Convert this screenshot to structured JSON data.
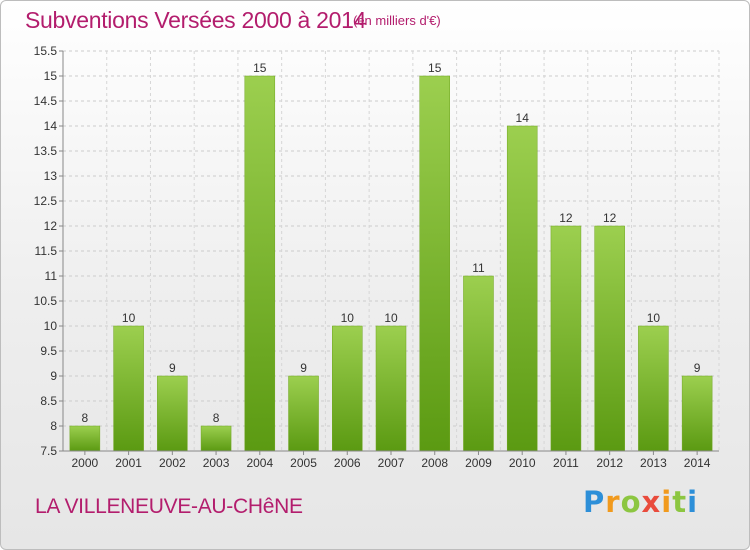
{
  "header": {
    "title": "Subventions Versées 2000 à 2014",
    "subtitle": "(en milliers d'€)"
  },
  "footer": {
    "place": "LA VILLENEUVE-AU-CHêNE",
    "logo_text": "Proxiti"
  },
  "colors": {
    "title": "#b31d6d",
    "bar_top": "#9ccf4f",
    "bar_bottom": "#5b9a12"
  },
  "chart_data": {
    "type": "bar",
    "title": "Subventions Versées 2000 à 2014",
    "subtitle": "(en milliers d'€)",
    "xlabel": "",
    "ylabel": "",
    "categories": [
      "2000",
      "2001",
      "2002",
      "2003",
      "2004",
      "2005",
      "2006",
      "2007",
      "2008",
      "2009",
      "2010",
      "2011",
      "2012",
      "2013",
      "2014"
    ],
    "values": [
      8,
      10,
      9,
      8,
      15,
      9,
      10,
      10,
      15,
      11,
      14,
      12,
      12,
      10,
      9
    ],
    "ylim": [
      7.5,
      15.5
    ],
    "yticks": [
      "7.5",
      "8",
      "8.5",
      "9",
      "9.5",
      "10",
      "10.5",
      "11",
      "11.5",
      "12",
      "12.5",
      "13",
      "13.5",
      "14",
      "14.5",
      "15",
      "15.5"
    ],
    "grid": true
  }
}
